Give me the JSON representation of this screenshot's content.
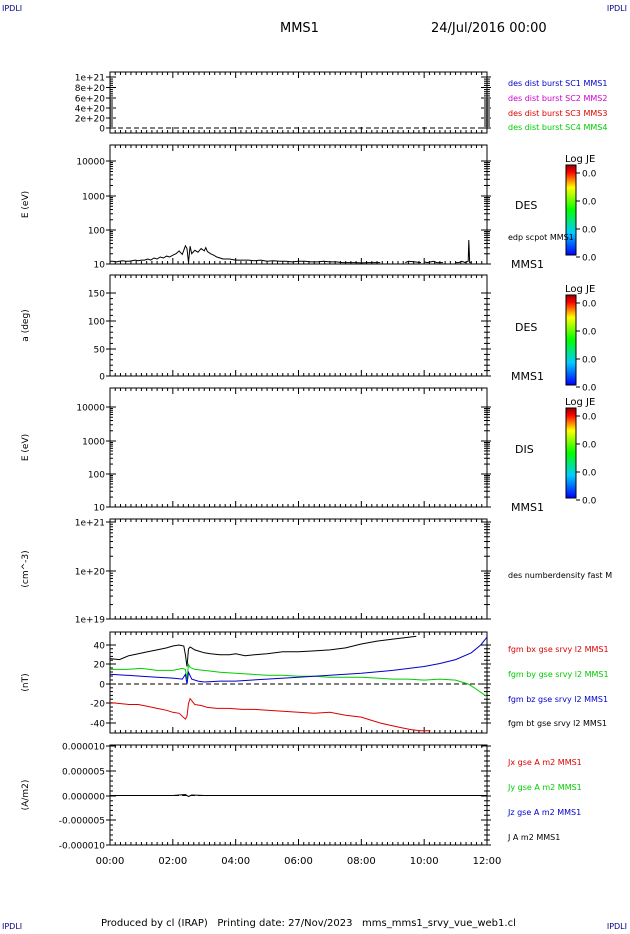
{
  "header": {
    "corner_label": "IPDLI",
    "spacecraft": "MMS1",
    "date_time": "24/Jul/2016 00:00"
  },
  "footer": {
    "text": "Produced by cl (IRAP)   Printing date: 27/Nov/2023   mms_mms1_srvy_vue_web1.cl"
  },
  "colors": {
    "black": "#000000",
    "blue": "#0000cc",
    "magenta": "#cc00cc",
    "red": "#dd0000",
    "green": "#00cc00"
  },
  "chart_data": [
    {
      "id": "p1",
      "type": "line",
      "y_ticks": [
        "1e+21",
        "8e+20",
        "6e+20",
        "4e+20",
        "2e+20",
        "0"
      ],
      "ylim": [
        0,
        1.1e+21
      ],
      "reference_line": 0,
      "side_labels": [
        {
          "text": "des dist burst SC1 MMS1",
          "color": "#0000cc"
        },
        {
          "text": "des dist burst SC2 MMS2",
          "color": "#cc00cc"
        },
        {
          "text": "des dist burst SC3 MMS3",
          "color": "#dd0000"
        },
        {
          "text": "des dist burst SC4 MMS4",
          "color": "#00cc00"
        }
      ]
    },
    {
      "id": "p2",
      "type": "line",
      "ylabel": "E (eV)",
      "y_scale": "log",
      "ylim": [
        10,
        15000
      ],
      "y_ticks": [
        "10000",
        "1000",
        "100",
        "10"
      ],
      "instrument": "DES",
      "spacecraft": "MMS1",
      "colorbar": {
        "title": "Log JE",
        "ticks": [
          "0.0",
          "0.0",
          "0.0",
          "0.0"
        ]
      },
      "side_labels": [
        {
          "text": "edp scpot MMS1",
          "color": "#000000"
        }
      ],
      "series": [
        {
          "name": "edp scpot MMS1",
          "color": "#000000",
          "x": [
            0.0,
            0.1,
            0.2,
            0.3,
            0.4,
            0.5,
            0.6,
            0.7,
            0.8,
            0.9,
            1.0,
            1.1,
            1.2,
            1.3,
            1.4,
            1.5,
            1.6,
            1.7,
            1.8,
            1.9,
            2.0,
            2.1,
            2.2,
            2.3,
            2.4,
            2.45,
            2.5,
            2.55,
            2.6,
            2.7,
            2.8,
            2.9,
            3.0,
            3.05,
            3.1,
            3.2,
            3.3,
            3.4,
            3.5,
            3.6,
            3.8,
            4.0,
            4.2,
            4.4,
            4.6,
            4.8,
            5.0,
            5.2,
            5.4,
            5.6,
            5.8,
            6.0,
            6.2,
            6.4,
            6.6,
            6.8,
            7.0,
            7.2,
            7.4,
            7.6,
            7.8,
            8.0,
            8.2,
            8.4,
            8.6,
            null,
            9.4,
            9.5,
            9.7,
            9.9,
            null,
            10.0,
            10.1,
            10.3,
            10.4,
            10.6,
            null,
            11.0,
            11.1,
            11.2,
            11.3,
            11.4,
            11.42,
            11.45,
            11.5
          ],
          "y": [
            12,
            12,
            11.5,
            12,
            12.5,
            12,
            12,
            12.5,
            13,
            12.5,
            13,
            13,
            14,
            13,
            15,
            14,
            16,
            15,
            17,
            16,
            18,
            20,
            24,
            19,
            34,
            28,
            11,
            33,
            20,
            25,
            22,
            28,
            24,
            30,
            23,
            20,
            18,
            16,
            15,
            14,
            14,
            13,
            13,
            13,
            12.5,
            13,
            12,
            12.5,
            12,
            12,
            11.5,
            12,
            12,
            11.5,
            11.5,
            12,
            11.5,
            11.5,
            11,
            11,
            11,
            10.8,
            11,
            11,
            11,
            null,
            11,
            12,
            11.5,
            11,
            null,
            11.5,
            11,
            12,
            11,
            11,
            null,
            11,
            11,
            12,
            11,
            12,
            50,
            11,
            11
          ]
        }
      ]
    },
    {
      "id": "p3",
      "type": "line",
      "ylabel": "a (deg)",
      "ylim": [
        0,
        180
      ],
      "y_ticks": [
        "150",
        "100",
        "50",
        "0"
      ],
      "instrument": "DES",
      "spacecraft": "MMS1",
      "colorbar": {
        "title": "Log JE",
        "ticks": [
          "0.0",
          "0.0",
          "0.0",
          "0.0"
        ]
      }
    },
    {
      "id": "p4",
      "type": "line",
      "ylabel": "E (eV)",
      "y_scale": "log",
      "ylim": [
        10,
        15000
      ],
      "y_ticks": [
        "10000",
        "1000",
        "100",
        "10"
      ],
      "instrument": "DIS",
      "spacecraft": "MMS1",
      "colorbar": {
        "title": "Log JE",
        "ticks": [
          "0.0",
          "0.0",
          "0.0",
          "0.0"
        ]
      }
    },
    {
      "id": "p5",
      "type": "line",
      "ylabel": "(cm^-3)",
      "y_scale": "log",
      "ylim": [
        1e+19,
        1e+21
      ],
      "y_ticks": [
        "1e+21",
        "1e+20",
        "1e+19"
      ],
      "side_labels": [
        {
          "text": "des numberdensity fast M",
          "color": "#000000"
        }
      ]
    },
    {
      "id": "p6",
      "type": "line",
      "ylabel": "(nT)",
      "ylim": [
        -48,
        48
      ],
      "y_ticks": [
        "40",
        "20",
        "0",
        "-20",
        "-40"
      ],
      "reference_line": 0,
      "side_labels": [
        {
          "text": "fgm bx gse srvy l2 MMS1",
          "color": "#dd0000"
        },
        {
          "text": "fgm by gse srvy l2 MMS1",
          "color": "#00cc00"
        },
        {
          "text": "fgm bz gse srvy l2 MMS1",
          "color": "#0000cc"
        },
        {
          "text": "fgm bt gse srvy l2 MMS1",
          "color": "#000000"
        }
      ],
      "series": [
        {
          "name": "fgm bt gse srvy l2 MMS1",
          "color": "#000000",
          "x": [
            0.0,
            0.3,
            0.6,
            0.9,
            1.2,
            1.5,
            1.8,
            2.0,
            2.2,
            2.35,
            2.4,
            2.45,
            2.5,
            2.55,
            2.6,
            2.7,
            2.8,
            3.0,
            3.2,
            3.5,
            3.8,
            4.0,
            4.3,
            4.6,
            5.0,
            5.5,
            6.0,
            6.5,
            7.0,
            7.5,
            8.0,
            8.5,
            9.0,
            9.5,
            9.75
          ],
          "y": [
            26,
            25,
            29,
            31,
            33,
            35,
            37,
            39,
            40,
            39,
            30,
            18,
            36,
            38,
            37,
            35,
            34,
            32,
            31,
            30,
            30,
            31,
            29,
            30,
            31,
            33,
            33,
            34,
            35,
            37,
            41,
            44,
            46,
            48,
            49
          ]
        },
        {
          "name": "fgm by gse srvy l2 MMS1",
          "color": "#00cc00",
          "x": [
            0.0,
            0.5,
            1.0,
            1.5,
            2.0,
            2.3,
            2.4,
            2.45,
            2.5,
            2.55,
            2.7,
            3.0,
            3.5,
            4.0,
            4.5,
            5.0,
            5.5,
            6.0,
            6.5,
            7.0,
            7.5,
            8.0,
            8.5,
            9.0,
            9.5,
            10.0,
            10.5,
            11.0,
            11.4,
            11.6,
            12.0
          ],
          "y": [
            15,
            15,
            16,
            14,
            14,
            16,
            15,
            5,
            20,
            17,
            15,
            14,
            12,
            11,
            10,
            9,
            9,
            8,
            8,
            7,
            7,
            7,
            6,
            5,
            5,
            4,
            5,
            4,
            0,
            -4,
            -13
          ]
        },
        {
          "name": "fgm bz gse srvy l2 MMS1",
          "color": "#0000cc",
          "x": [
            0.0,
            0.5,
            1.0,
            1.5,
            2.0,
            2.3,
            2.4,
            2.45,
            2.5,
            2.6,
            2.8,
            3.0,
            3.5,
            4.0,
            5.0,
            6.0,
            7.0,
            8.0,
            9.0,
            10.0,
            10.5,
            11.0,
            11.5,
            11.8,
            12.0
          ],
          "y": [
            10,
            9,
            8,
            7,
            6,
            5,
            10,
            0,
            12,
            5,
            3,
            2,
            3,
            3,
            5,
            7,
            9,
            11,
            14,
            18,
            21,
            25,
            32,
            40,
            48
          ]
        },
        {
          "name": "fgm bx gse srvy l2 MMS1",
          "color": "#dd0000",
          "x": [
            0.0,
            0.3,
            0.6,
            0.9,
            1.2,
            1.5,
            1.8,
            2.0,
            2.2,
            2.4,
            2.45,
            2.5,
            2.55,
            2.6,
            2.7,
            2.9,
            3.1,
            3.4,
            3.8,
            4.2,
            4.6,
            5.0,
            5.5,
            6.0,
            6.5,
            7.0,
            7.5,
            8.0,
            8.3,
            8.6,
            9.0,
            9.3,
            9.6,
            9.9,
            10.2
          ],
          "y": [
            -19,
            -20,
            -21,
            -21,
            -23,
            -25,
            -27,
            -29,
            -30,
            -36,
            -33,
            -20,
            -15,
            -17,
            -21,
            -22,
            -24,
            -25,
            -25,
            -26,
            -26,
            -27,
            -28,
            -29,
            -30,
            -29,
            -32,
            -34,
            -37,
            -40,
            -43,
            -45,
            -47,
            -48,
            -48
          ]
        }
      ]
    },
    {
      "id": "p7",
      "type": "line",
      "ylabel": "(A/m2)",
      "ylim": [
        -1e-05,
        1e-05
      ],
      "y_ticks": [
        "0.000010",
        "0.000005",
        "0.000000",
        "-0.000005",
        "-0.000010"
      ],
      "reference_line": 0,
      "x_ticks": [
        "00:00",
        "02:00",
        "04:00",
        "06:00",
        "08:00",
        "10:00",
        "12:00"
      ],
      "xlim": [
        0,
        12
      ],
      "side_labels": [
        {
          "text": "Jx gse A m2 MMS1",
          "color": "#dd0000"
        },
        {
          "text": "Jy gse A m2 MMS1",
          "color": "#00cc00"
        },
        {
          "text": "Jz gse A m2 MMS1",
          "color": "#0000cc"
        },
        {
          "text": "J A m2 MMS1",
          "color": "#000000"
        }
      ],
      "series": [
        {
          "name": "J A m2 MMS1",
          "color": "#000000",
          "x": [
            0,
            1,
            2,
            2.4,
            2.5,
            2.6,
            3,
            4,
            5,
            6,
            7,
            8,
            9,
            10,
            11,
            12
          ],
          "y": [
            0,
            0,
            0,
            2e-07,
            -2e-07,
            1e-07,
            0,
            0,
            0,
            0,
            0,
            0,
            0,
            0,
            0,
            0
          ]
        }
      ]
    }
  ]
}
